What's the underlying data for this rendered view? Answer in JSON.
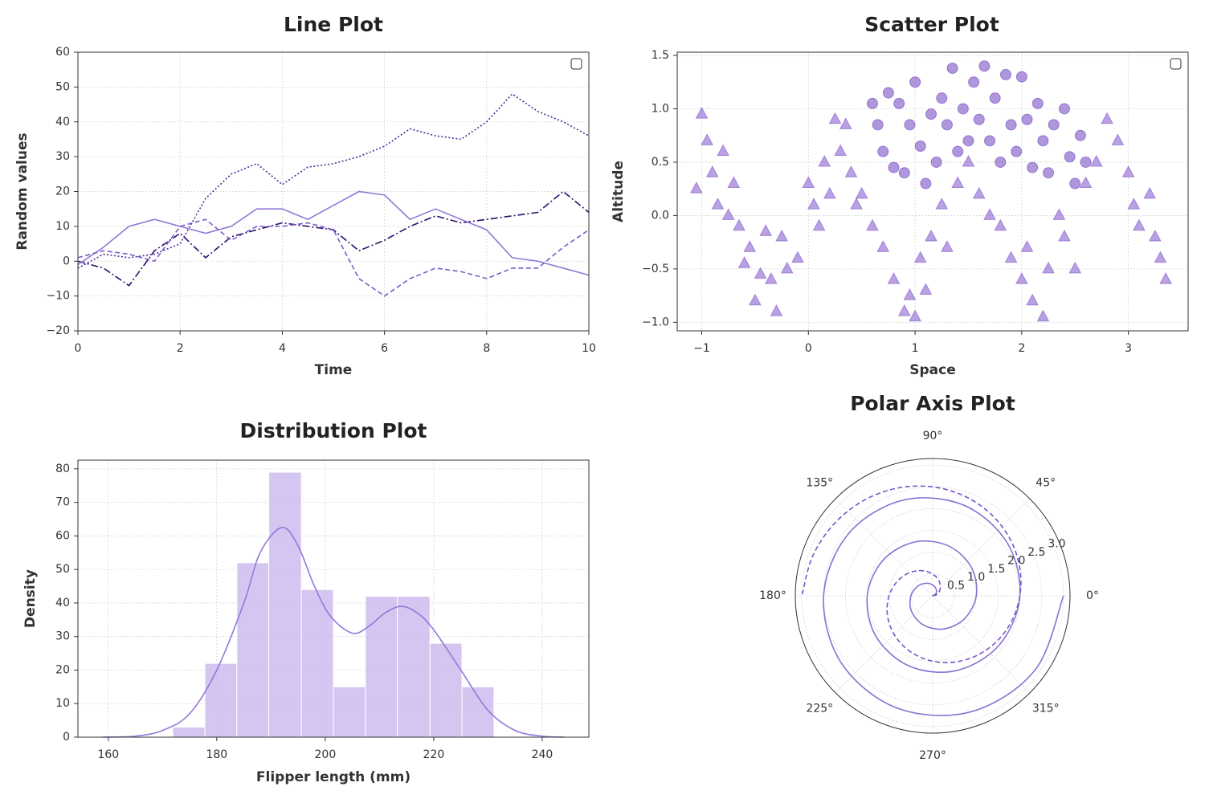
{
  "chart_data": [
    {
      "type": "line",
      "title": "Line Plot",
      "xlabel": "Time",
      "ylabel": "Random values",
      "xlim": [
        0,
        10
      ],
      "ylim": [
        -20,
        60
      ],
      "xticks": [
        0,
        2,
        4,
        6,
        8,
        10
      ],
      "yticks": [
        {
          "value": -20,
          "label": "−20"
        },
        {
          "value": -10,
          "label": "−10"
        },
        0,
        10,
        20,
        30,
        40,
        50,
        60
      ],
      "grid": true,
      "legend": "upper right",
      "x": [
        0,
        0.5,
        1,
        1.5,
        2,
        2.5,
        3,
        3.5,
        4,
        4.5,
        5,
        5.5,
        6,
        6.5,
        7,
        7.5,
        8,
        8.5,
        9,
        9.5,
        10
      ],
      "series": [
        {
          "color": "#2d0f6b",
          "linestyle": "dashdot",
          "values": [
            0,
            -2,
            -7,
            3,
            8,
            1,
            7,
            9,
            11,
            10,
            9,
            3,
            6,
            10,
            13,
            11,
            12,
            13,
            14,
            20,
            14
          ]
        },
        {
          "color": "#4b2a9a",
          "linestyle": "dotted",
          "values": [
            -2,
            2,
            1,
            2,
            5,
            18,
            25,
            28,
            22,
            27,
            28,
            30,
            33,
            38,
            36,
            35,
            40,
            48,
            43,
            40,
            36
          ]
        },
        {
          "color": "#9178d8",
          "linestyle": "solid",
          "values": [
            -1,
            4,
            10,
            12,
            10,
            8,
            10,
            15,
            15,
            12,
            16,
            20,
            19,
            12,
            15,
            12,
            9,
            1,
            0,
            -2,
            -4
          ]
        },
        {
          "color": "#7c5cc8",
          "linestyle": "dashed",
          "values": [
            1,
            3,
            2,
            0,
            10,
            12,
            6,
            10,
            10,
            11,
            9,
            -5,
            -10,
            -5,
            -2,
            -3,
            -5,
            -2,
            -2,
            4,
            9
          ]
        }
      ]
    },
    {
      "type": "scatter",
      "title": "Scatter Plot",
      "xlabel": "Space",
      "ylabel": "Altitude",
      "xlim": [
        -1.23,
        3.56
      ],
      "ylim": [
        -1.08,
        1.53
      ],
      "xticks": [
        {
          "value": -1,
          "label": "−1"
        },
        0,
        1,
        2,
        3
      ],
      "yticks": [
        {
          "value": -1,
          "label": "−1.0"
        },
        {
          "value": -0.5,
          "label": "−0.5"
        },
        {
          "value": 0,
          "label": "0.0"
        },
        0.5,
        {
          "value": 1,
          "label": "1.0"
        },
        1.5
      ],
      "grid": true,
      "legend": "upper right",
      "series": [
        {
          "marker": "triangle",
          "color": "#8a63cf",
          "x": [
            -1.05,
            -1.0,
            -0.95,
            -0.9,
            -0.85,
            -0.8,
            -0.75,
            -0.7,
            -0.65,
            -0.6,
            -0.55,
            -0.5,
            -0.45,
            -0.4,
            -0.35,
            -0.3,
            -0.25,
            -0.2,
            -0.1,
            0.0,
            0.05,
            0.1,
            0.15,
            0.2,
            0.25,
            0.3,
            0.35,
            0.4,
            0.45,
            0.5,
            0.6,
            0.7,
            0.8,
            0.9,
            0.95,
            1.0,
            1.05,
            1.1,
            1.15,
            1.25,
            1.3,
            1.4,
            1.5,
            1.6,
            1.7,
            1.8,
            1.9,
            2.0,
            2.05,
            2.1,
            2.2,
            2.25,
            2.35,
            2.4,
            2.5,
            2.6,
            2.7,
            2.8,
            2.9,
            3.0,
            3.05,
            3.1,
            3.2,
            3.25,
            3.3,
            3.35
          ],
          "y": [
            0.25,
            0.95,
            0.7,
            0.4,
            0.1,
            0.6,
            0.0,
            0.3,
            -0.1,
            -0.45,
            -0.3,
            -0.8,
            -0.55,
            -0.15,
            -0.6,
            -0.9,
            -0.2,
            -0.5,
            -0.4,
            0.3,
            0.1,
            -0.1,
            0.5,
            0.2,
            0.9,
            0.6,
            0.85,
            0.4,
            0.1,
            0.2,
            -0.1,
            -0.3,
            -0.6,
            -0.9,
            -0.75,
            -0.95,
            -0.4,
            -0.7,
            -0.2,
            0.1,
            -0.3,
            0.3,
            0.5,
            0.2,
            0.0,
            -0.1,
            -0.4,
            -0.6,
            -0.3,
            -0.8,
            -0.95,
            -0.5,
            0.0,
            -0.2,
            -0.5,
            0.3,
            0.5,
            0.9,
            0.7,
            0.4,
            0.1,
            -0.1,
            0.2,
            -0.2,
            -0.4,
            -0.6
          ]
        },
        {
          "marker": "circle",
          "color": "#7b52c4",
          "x": [
            0.6,
            0.65,
            0.7,
            0.75,
            0.8,
            0.85,
            0.9,
            0.95,
            1.0,
            1.05,
            1.1,
            1.15,
            1.2,
            1.25,
            1.3,
            1.35,
            1.4,
            1.45,
            1.5,
            1.55,
            1.6,
            1.65,
            1.7,
            1.75,
            1.8,
            1.85,
            1.9,
            1.95,
            2.0,
            2.05,
            2.1,
            2.15,
            2.2,
            2.25,
            2.3,
            2.4,
            2.45,
            2.5,
            2.55,
            2.6
          ],
          "y": [
            1.05,
            0.85,
            0.6,
            1.15,
            0.45,
            1.05,
            0.4,
            0.85,
            1.25,
            0.65,
            0.3,
            0.95,
            0.5,
            1.1,
            0.85,
            1.38,
            0.6,
            1.0,
            0.7,
            1.25,
            0.9,
            1.4,
            0.7,
            1.1,
            0.5,
            1.32,
            0.85,
            0.6,
            1.3,
            0.9,
            0.45,
            1.05,
            0.7,
            0.4,
            0.85,
            1.0,
            0.55,
            0.3,
            0.75,
            0.5
          ]
        }
      ]
    },
    {
      "type": "histogram",
      "title": "Distribution Plot",
      "xlabel": "Flipper length (mm)",
      "ylabel": "Density",
      "xlim": [
        154.4,
        248.6
      ],
      "ylim": [
        0,
        82.6
      ],
      "xticks": [
        160,
        180,
        200,
        220,
        240
      ],
      "yticks": [
        0,
        10,
        20,
        30,
        40,
        50,
        60,
        70,
        80
      ],
      "grid": true,
      "color": "#c9b8ec",
      "bins": [
        171.9,
        177.8,
        183.7,
        189.6,
        195.6,
        201.5,
        207.4,
        213.3,
        219.3,
        225.2,
        231.1
      ],
      "counts": [
        3,
        22,
        52,
        79,
        44,
        15,
        42,
        42,
        28,
        15
      ],
      "kde": {
        "color": "#9478d8",
        "x": [
          159,
          165,
          170,
          175,
          180,
          185,
          188,
          192,
          195,
          198,
          201,
          205,
          208,
          211,
          214,
          217,
          220,
          225,
          230,
          235,
          240,
          244
        ],
        "values": [
          0,
          0.3,
          2,
          7,
          20,
          40,
          55,
          62.5,
          57,
          45,
          36,
          31,
          33,
          37,
          39,
          37,
          32,
          20,
          8,
          2,
          0.3,
          0
        ]
      }
    },
    {
      "type": "polar",
      "title": "Polar Axis Plot",
      "rlim": [
        0,
        3.15
      ],
      "rticks": [
        0.5,
        {
          "value": 1,
          "label": "1.0"
        },
        1.5,
        {
          "value": 2,
          "label": "2.0"
        },
        2.5,
        {
          "value": 3,
          "label": "3.0"
        }
      ],
      "thetaticks": [
        {
          "value": 0,
          "label": "0°"
        },
        {
          "value": 45,
          "label": "45°"
        },
        {
          "value": 90,
          "label": "90°"
        },
        {
          "value": 135,
          "label": "135°"
        },
        {
          "value": 180,
          "label": "180°"
        },
        {
          "value": 225,
          "label": "225°"
        },
        {
          "value": 270,
          "label": "270°"
        },
        {
          "value": 315,
          "label": "315°"
        }
      ],
      "grid": true,
      "r": [
        0,
        0.1,
        0.2,
        0.3,
        0.4,
        0.5,
        0.6,
        0.7,
        0.8,
        0.9,
        1.0,
        1.1,
        1.2,
        1.3,
        1.4,
        1.5,
        1.6,
        1.7,
        1.8,
        1.9,
        2.0,
        2.1,
        2.2,
        2.3,
        2.4,
        2.5,
        2.6,
        2.7,
        2.8,
        2.9,
        3.0
      ],
      "series": [
        {
          "color": "#8a70d4",
          "linestyle": "solid",
          "theta": [
            0,
            36,
            72,
            108,
            144,
            180,
            216,
            252,
            288,
            324,
            360,
            396,
            432,
            468,
            504,
            540,
            576,
            612,
            648,
            684,
            720,
            756,
            792,
            828,
            864,
            900,
            936,
            972,
            1008,
            1044,
            1080
          ]
        },
        {
          "color": "#7a55c9",
          "linestyle": "dashed",
          "theta": [
            0,
            18,
            36,
            54,
            72,
            90,
            108,
            126,
            144,
            162,
            180,
            198,
            216,
            234,
            252,
            270,
            288,
            306,
            324,
            342,
            360,
            378,
            396,
            414,
            432,
            450,
            468,
            486,
            504,
            522,
            540
          ]
        }
      ]
    }
  ]
}
